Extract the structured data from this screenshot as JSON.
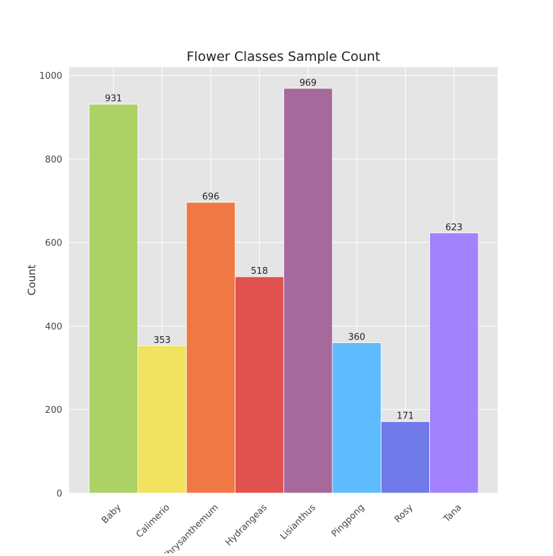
{
  "chart_data": {
    "type": "bar",
    "title": "Flower Classes Sample Count",
    "xlabel": "",
    "ylabel": "Count",
    "categories": [
      "Baby",
      "Calimerio",
      "Chrysanthemum",
      "Hydrangeas",
      "Lisianthus",
      "Pingpong",
      "Rosy",
      "Tana"
    ],
    "values": [
      931,
      353,
      696,
      518,
      969,
      360,
      171,
      623
    ],
    "colors": [
      "#acd164",
      "#f1e260",
      "#ef7845",
      "#e0514f",
      "#a56a9b",
      "#5ebbfe",
      "#717ae9",
      "#a382fe"
    ],
    "ylim": [
      0,
      1020
    ],
    "yticks": [
      0,
      200,
      400,
      600,
      800,
      1000
    ],
    "grid": true,
    "legend": "none",
    "plot_background": "#e5e5e5"
  }
}
